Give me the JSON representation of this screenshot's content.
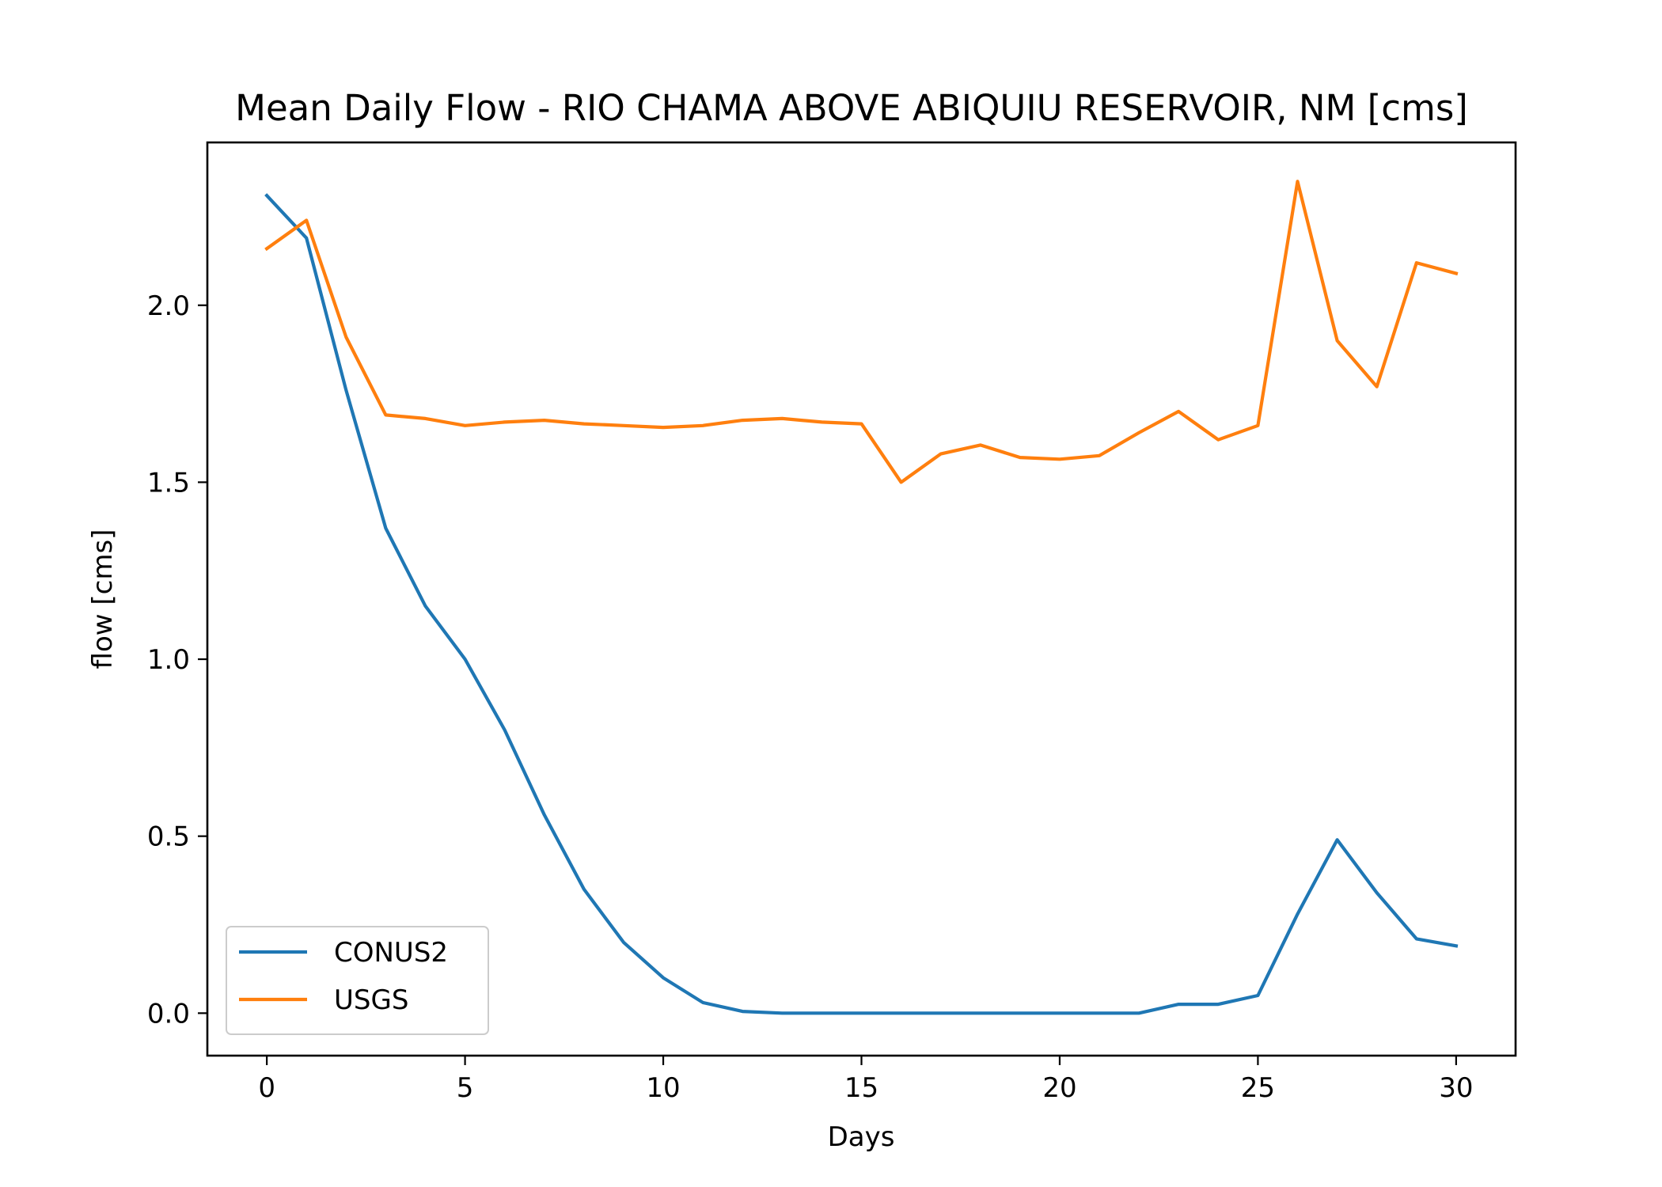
{
  "chart_data": {
    "type": "line",
    "title": "Mean Daily Flow - RIO CHAMA ABOVE ABIQUIU RESERVOIR, NM [cms]",
    "xlabel": "Days",
    "ylabel": "flow [cms]",
    "xlim": [
      -1.5,
      31.5
    ],
    "ylim": [
      -0.12,
      2.46
    ],
    "xticks": [
      0,
      5,
      10,
      15,
      20,
      25,
      30
    ],
    "xtick_labels": [
      "0",
      "5",
      "10",
      "15",
      "20",
      "25",
      "30"
    ],
    "yticks": [
      0.0,
      0.5,
      1.0,
      1.5,
      2.0
    ],
    "ytick_labels": [
      "0.0",
      "0.5",
      "1.0",
      "1.5",
      "2.0"
    ],
    "grid": false,
    "legend_position": "lower-left",
    "x": [
      0,
      1,
      2,
      3,
      4,
      5,
      6,
      7,
      8,
      9,
      10,
      11,
      12,
      13,
      14,
      15,
      16,
      17,
      18,
      19,
      20,
      21,
      22,
      23,
      24,
      25,
      26,
      27,
      28,
      29,
      30
    ],
    "series": [
      {
        "name": "CONUS2",
        "color": "#1f77b4",
        "values": [
          2.31,
          2.19,
          1.76,
          1.37,
          1.15,
          1.0,
          0.8,
          0.56,
          0.35,
          0.2,
          0.1,
          0.03,
          0.005,
          0.0,
          0.0,
          0.0,
          0.0,
          0.0,
          0.0,
          0.0,
          0.0,
          0.0,
          0.0,
          0.025,
          0.025,
          0.05,
          0.28,
          0.49,
          0.34,
          0.21,
          0.19
        ]
      },
      {
        "name": "USGS",
        "color": "#ff7f0e",
        "values": [
          2.16,
          2.24,
          1.91,
          1.69,
          1.68,
          1.66,
          1.67,
          1.675,
          1.665,
          1.66,
          1.655,
          1.66,
          1.675,
          1.68,
          1.67,
          1.665,
          1.5,
          1.58,
          1.605,
          1.57,
          1.565,
          1.575,
          1.64,
          1.7,
          1.62,
          1.66,
          2.35,
          1.9,
          1.77,
          2.12,
          2.09
        ]
      }
    ]
  }
}
